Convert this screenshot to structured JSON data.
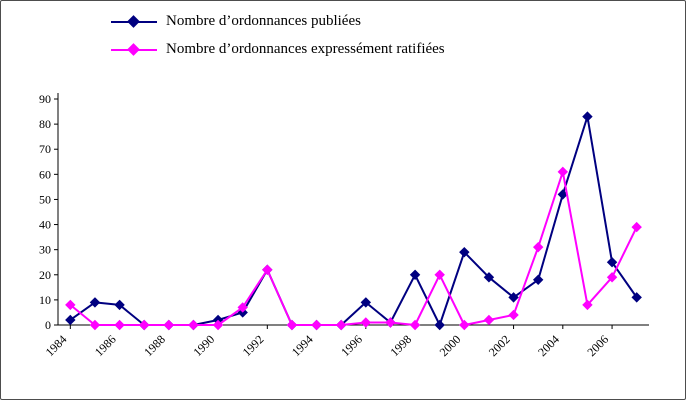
{
  "legend": {
    "items": [
      {
        "label": "Nombre d’ordonnances publiées",
        "color": "#000080"
      },
      {
        "label": "Nombre d’ordonnances expressément ratifiées",
        "color": "#FF00FF"
      }
    ]
  },
  "chart_data": {
    "type": "line",
    "title": "",
    "xlabel": "",
    "ylabel": "",
    "grid": false,
    "legend_position": "top-left",
    "ylim": [
      0,
      90
    ],
    "ytick_step": 10,
    "xtick_every": 2,
    "x": [
      1984,
      1985,
      1986,
      1987,
      1988,
      1989,
      1990,
      1991,
      1992,
      1993,
      1994,
      1995,
      1996,
      1997,
      1998,
      1999,
      2000,
      2001,
      2002,
      2003,
      2004,
      2005,
      2006,
      2007
    ],
    "xtick_labels": [
      "1984",
      "1986",
      "1988",
      "1990",
      "1992",
      "1994",
      "1996",
      "1998",
      "2000",
      "2002",
      "2004",
      "2006"
    ],
    "ytick_labels": [
      "0",
      "10",
      "20",
      "30",
      "40",
      "50",
      "60",
      "70",
      "80",
      "90"
    ],
    "series": [
      {
        "name": "Nombre d’ordonnances publiées",
        "color": "#000080",
        "marker": "diamond",
        "values": [
          2,
          9,
          8,
          0,
          0,
          0,
          2,
          5,
          22,
          0,
          0,
          0,
          9,
          1,
          20,
          0,
          29,
          19,
          11,
          18,
          52,
          83,
          25,
          11
        ]
      },
      {
        "name": "Nombre d’ordonnances expressément ratifiées",
        "color": "#FF00FF",
        "marker": "diamond",
        "values": [
          8,
          0,
          0,
          0,
          0,
          0,
          0,
          7,
          22,
          0,
          0,
          0,
          1,
          1,
          0,
          20,
          0,
          2,
          4,
          31,
          61,
          8,
          19,
          39
        ]
      }
    ]
  }
}
